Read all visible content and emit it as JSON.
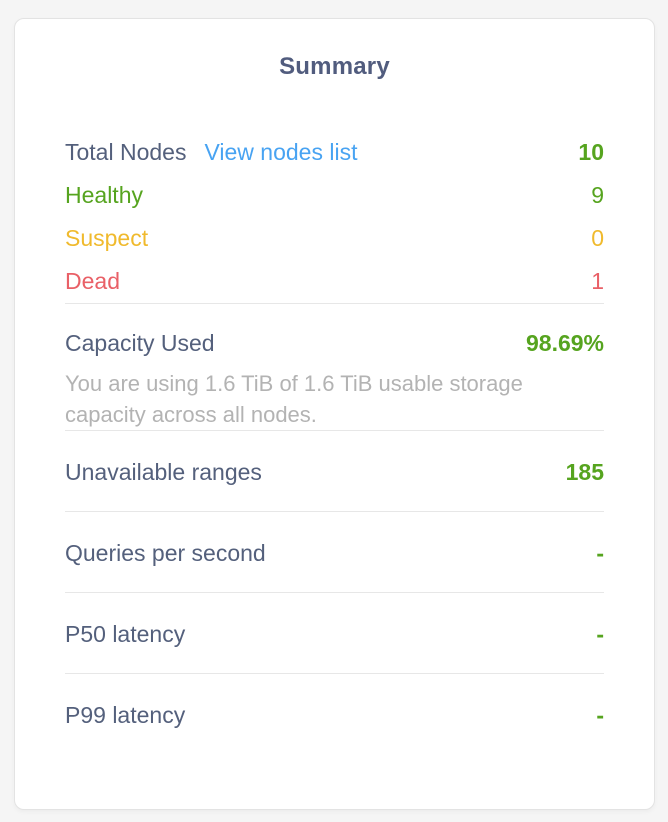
{
  "panel": {
    "title": "Summary",
    "nodes": {
      "total": {
        "label": "Total Nodes",
        "link_label": "View nodes list",
        "value": "10"
      },
      "statuses": [
        {
          "label": "Healthy",
          "value": "9",
          "color": "#56a41f"
        },
        {
          "label": "Suspect",
          "value": "0",
          "color": "#f0ba2d"
        },
        {
          "label": "Dead",
          "value": "1",
          "color": "#e96067"
        }
      ]
    },
    "capacity": {
      "label": "Capacity Used",
      "value": "98.69%",
      "description": "You are using 1.6 TiB of 1.6 TiB usable storage capacity across all nodes."
    },
    "metrics": [
      {
        "label": "Unavailable ranges",
        "value": "185"
      },
      {
        "label": "Queries per second",
        "value": "-"
      },
      {
        "label": "P50 latency",
        "value": "-"
      },
      {
        "label": "P99 latency",
        "value": "-"
      }
    ],
    "colors": {
      "label_slate": "#54607c",
      "title_slate": "#515c7e",
      "value_green": "#56a41f",
      "warn_yellow": "#f0ba2d",
      "dead_red": "#e96067",
      "link_blue": "#48a3f2",
      "desc_gray": "#b3b3b3",
      "divider": "#e7e7e7",
      "card_bg": "#ffffff",
      "page_bg": "#f5f5f5"
    }
  }
}
